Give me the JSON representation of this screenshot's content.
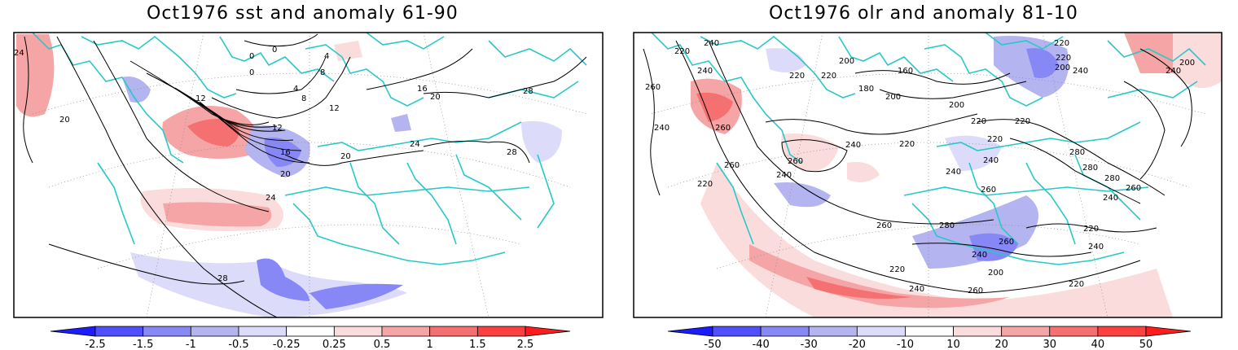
{
  "panels": [
    {
      "title": "Oct1976 sst and anomaly 61-90",
      "contour_labels": [
        "24",
        "0",
        "0",
        "0",
        "4",
        "8",
        "4",
        "8",
        "12",
        "12",
        "16",
        "20",
        "20",
        "12",
        "16",
        "20",
        "24",
        "28",
        "28",
        "24",
        "28",
        "20",
        "12",
        "0"
      ],
      "colorbar": {
        "labels": [
          "-2.5",
          "-1.5",
          "-1",
          "-0.5",
          "-0.25",
          "0.25",
          "0.5",
          "1",
          "1.5",
          "2.5"
        ],
        "colors": [
          "#1c1cff",
          "#4f4fff",
          "#8787f5",
          "#b4b4f0",
          "#dcdcfa",
          "#ffffff",
          "#fadcdc",
          "#f5a5a5",
          "#f57070",
          "#ff4040",
          "#ff1c1c"
        ]
      }
    },
    {
      "title": "Oct1976 olr and anomaly 81-10",
      "contour_labels": [
        "240",
        "220",
        "240",
        "260",
        "240",
        "260",
        "220",
        "220",
        "200",
        "180",
        "160",
        "200",
        "200",
        "220",
        "220",
        "240",
        "240",
        "260",
        "260",
        "220",
        "240",
        "260",
        "220",
        "220",
        "240",
        "260",
        "280",
        "200",
        "220",
        "240",
        "200",
        "220",
        "240",
        "280",
        "280",
        "240",
        "260",
        "280",
        "220",
        "240",
        "260",
        "200",
        "220",
        "240",
        "260",
        "220",
        "240"
      ],
      "colorbar": {
        "labels": [
          "-50",
          "-40",
          "-30",
          "-20",
          "-10",
          "10",
          "20",
          "30",
          "40",
          "50"
        ],
        "colors": [
          "#1c1cff",
          "#4f4fff",
          "#8787f5",
          "#b4b4f0",
          "#dcdcfa",
          "#ffffff",
          "#fadcdc",
          "#f5a5a5",
          "#f57070",
          "#ff4040",
          "#ff1c1c"
        ]
      }
    }
  ]
}
